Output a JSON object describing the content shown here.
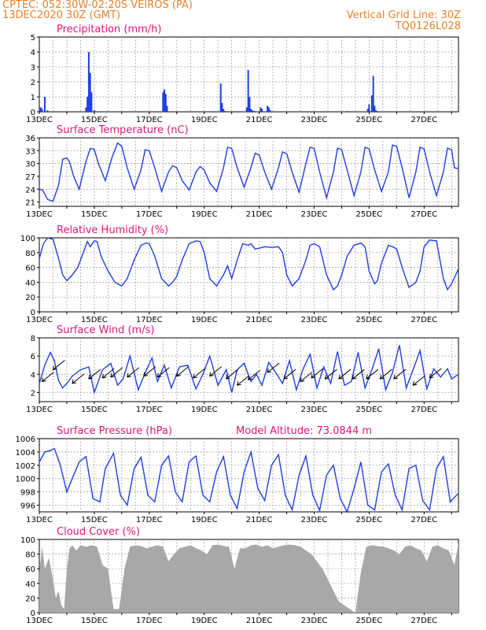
{
  "header": {
    "left_line1": "CPTEC:   052:30W-02:20S   VEIROS (PA)",
    "left_line2": "13DEC2020 30Z (GMT)",
    "right_line1": "Vertical Grid Line: 30Z",
    "right_line2": "TQ0126L028"
  },
  "colors": {
    "header": "#e8822a",
    "title": "#e0177a",
    "line": "#1f3fe6",
    "cloud": "#a8a8a8",
    "grid": "#9a9a9a"
  },
  "x_tick_labels": [
    "13DEC",
    "15DEC",
    "17DEC",
    "19DEC",
    "21DEC",
    "23DEC",
    "25DEC",
    "27DEC"
  ],
  "x_range_days": [
    0,
    15.25
  ],
  "panels": [
    {
      "key": "precip",
      "title": "Precipitation (mm/h)",
      "type": "bar",
      "ylim": [
        0,
        5
      ],
      "yticks": [
        "0",
        "1",
        "2",
        "3",
        "4",
        "5"
      ]
    },
    {
      "key": "temp",
      "title": "Surface Temperature (nC)",
      "type": "line",
      "ylim": [
        20,
        36
      ],
      "yticks": [
        "21",
        "24",
        "27",
        "30",
        "33",
        "36"
      ]
    },
    {
      "key": "rh",
      "title": "Relative Humidity (%)",
      "type": "line",
      "ylim": [
        0,
        100
      ],
      "yticks": [
        "0",
        "20",
        "40",
        "60",
        "80",
        "100"
      ]
    },
    {
      "key": "wind",
      "title": "Surface Wind (m/s)",
      "type": "line",
      "ylim": [
        1,
        8
      ],
      "yticks": [
        "2",
        "4",
        "6",
        "8"
      ]
    },
    {
      "key": "pres",
      "title": "Surface Pressure (hPa)",
      "extra": "Model Altitude: 73.0844 m",
      "type": "line",
      "ylim": [
        995,
        1006
      ],
      "yticks": [
        "996",
        "998",
        "1000",
        "1002",
        "1004",
        "1006"
      ]
    },
    {
      "key": "cloud",
      "title": "Cloud Cover (%)",
      "type": "area",
      "ylim": [
        0,
        100
      ],
      "yticks": [
        "0",
        "20",
        "40",
        "60",
        "80",
        "100"
      ]
    }
  ],
  "chart_data": [
    {
      "type": "bar",
      "title": "Precipitation (mm/h)",
      "x_unit": "days from 13DEC 00Z",
      "x": [
        0.05,
        0.1,
        0.2,
        0.3,
        1.7,
        1.75,
        1.8,
        1.85,
        1.9,
        2.0,
        4.5,
        4.55,
        4.6,
        4.65,
        6.6,
        6.65,
        6.7,
        6.75,
        7.55,
        7.6,
        7.65,
        7.7,
        7.75,
        7.8,
        7.85,
        8.05,
        8.1,
        8.3,
        8.35,
        8.4,
        11.2,
        11.95,
        12.0,
        12.1,
        12.15,
        12.2,
        12.25,
        12.3
      ],
      "values": [
        0.3,
        0.2,
        1.0,
        0.1,
        0.3,
        1.0,
        4.0,
        2.6,
        1.3,
        0.1,
        1.3,
        1.5,
        1.2,
        0.4,
        1.9,
        0.6,
        0.2,
        0.05,
        0.3,
        2.8,
        1.0,
        0.2,
        0.1,
        0.05,
        0.05,
        0.3,
        0.2,
        0.4,
        0.3,
        0.1,
        0.05,
        0.2,
        0.5,
        1.1,
        2.4,
        0.4,
        0.1,
        0.05
      ],
      "ylim": [
        0,
        5
      ]
    },
    {
      "type": "line",
      "title": "Surface Temperature (nC)",
      "x_unit": "days from 13DEC 00Z",
      "x": [
        0,
        0.12,
        0.3,
        0.5,
        0.7,
        0.85,
        1.0,
        1.1,
        1.25,
        1.45,
        1.7,
        1.85,
        2.0,
        2.15,
        2.4,
        2.65,
        2.85,
        3.0,
        3.2,
        3.45,
        3.7,
        3.85,
        4.0,
        4.2,
        4.45,
        4.7,
        4.85,
        5.0,
        5.2,
        5.45,
        5.7,
        5.85,
        6.0,
        6.2,
        6.45,
        6.7,
        6.85,
        7.0,
        7.2,
        7.45,
        7.7,
        7.85,
        8.0,
        8.2,
        8.45,
        8.7,
        8.85,
        9.0,
        9.2,
        9.45,
        9.7,
        9.85,
        10.0,
        10.2,
        10.45,
        10.7,
        10.85,
        11.0,
        11.2,
        11.45,
        11.7,
        11.85,
        12.0,
        12.2,
        12.45,
        12.7,
        12.85,
        13.0,
        13.2,
        13.45,
        13.7,
        13.85,
        14.0,
        14.2,
        14.45,
        14.7,
        14.85,
        15.0,
        15.1,
        15.25
      ],
      "values": [
        24,
        23.8,
        21.6,
        21.2,
        25,
        31,
        31.3,
        30.4,
        27,
        24,
        30.5,
        33.5,
        33.3,
        30,
        26,
        31.5,
        34.8,
        34,
        29,
        24,
        28.5,
        33.2,
        33,
        29,
        23.5,
        28,
        29.5,
        29,
        26,
        23.8,
        28,
        29.3,
        28.5,
        25.5,
        23.5,
        29,
        33.8,
        33.5,
        29,
        24.5,
        29,
        32.4,
        32,
        28,
        24,
        29,
        32.7,
        32.3,
        28,
        23.3,
        30,
        33.8,
        33.5,
        28,
        22,
        28,
        33.6,
        33.2,
        28.5,
        22.5,
        28,
        33.8,
        33.4,
        28.5,
        23.5,
        28,
        34.3,
        34,
        29,
        22,
        28,
        33.8,
        33.4,
        28,
        22.5,
        28,
        33.6,
        33.2,
        29,
        28.8
      ],
      "ylim": [
        20,
        36
      ]
    },
    {
      "type": "line",
      "title": "Relative Humidity (%)",
      "x_unit": "days from 13DEC 00Z",
      "x": [
        0,
        0.15,
        0.3,
        0.5,
        0.7,
        0.85,
        1.0,
        1.2,
        1.4,
        1.6,
        1.75,
        1.85,
        2.0,
        2.1,
        2.25,
        2.5,
        2.75,
        3.0,
        3.2,
        3.45,
        3.7,
        3.9,
        4.0,
        4.2,
        4.45,
        4.7,
        4.85,
        5.0,
        5.2,
        5.45,
        5.7,
        5.85,
        6.0,
        6.2,
        6.45,
        6.7,
        6.85,
        7.0,
        7.2,
        7.4,
        7.6,
        7.7,
        7.85,
        8.0,
        8.2,
        8.45,
        8.7,
        8.85,
        9.0,
        9.2,
        9.45,
        9.7,
        9.85,
        10.0,
        10.2,
        10.45,
        10.7,
        10.85,
        11.0,
        11.2,
        11.45,
        11.7,
        11.85,
        12.0,
        12.2,
        12.3,
        12.45,
        12.7,
        12.85,
        13.0,
        13.2,
        13.45,
        13.7,
        13.85,
        14.0,
        14.2,
        14.45,
        14.7,
        14.85,
        15.0,
        15.25
      ],
      "values": [
        72,
        92,
        100,
        98,
        72,
        50,
        42,
        50,
        60,
        80,
        95,
        88,
        96,
        95,
        75,
        55,
        40,
        35,
        45,
        70,
        90,
        93,
        92,
        75,
        45,
        35,
        40,
        48,
        70,
        92,
        96,
        95,
        80,
        45,
        35,
        50,
        62,
        45,
        70,
        92,
        90,
        92,
        85,
        86,
        88,
        87,
        88,
        80,
        50,
        35,
        45,
        70,
        90,
        92,
        88,
        50,
        30,
        35,
        50,
        75,
        90,
        93,
        88,
        55,
        38,
        42,
        66,
        90,
        88,
        85,
        60,
        33,
        40,
        55,
        88,
        97,
        96,
        45,
        30,
        38,
        58
      ],
      "ylim": [
        0,
        100
      ]
    },
    {
      "type": "line",
      "title": "Surface Wind (m/s)",
      "x_unit": "days from 13DEC 00Z",
      "x": [
        0,
        0.2,
        0.4,
        0.55,
        0.7,
        0.85,
        1.0,
        1.2,
        1.5,
        1.8,
        2.0,
        2.3,
        2.6,
        2.85,
        3.05,
        3.3,
        3.6,
        3.9,
        4.1,
        4.3,
        4.55,
        4.8,
        5.1,
        5.4,
        5.7,
        5.95,
        6.2,
        6.5,
        6.8,
        7.0,
        7.2,
        7.45,
        7.7,
        7.9,
        8.1,
        8.35,
        8.6,
        8.85,
        9.1,
        9.35,
        9.6,
        9.85,
        10.1,
        10.35,
        10.6,
        10.85,
        11.1,
        11.35,
        11.6,
        11.85,
        12.1,
        12.35,
        12.6,
        12.85,
        13.1,
        13.35,
        13.6,
        13.85,
        14.1,
        14.35,
        14.6,
        14.85,
        15.0,
        15.25
      ],
      "values": [
        3.0,
        5.0,
        6.4,
        5.5,
        3.3,
        2.5,
        3.0,
        3.8,
        4.5,
        4.8,
        2.0,
        4.5,
        5.2,
        2.8,
        3.5,
        6.0,
        2.3,
        4.5,
        5.8,
        3.2,
        5.0,
        2.5,
        4.8,
        5.0,
        2.4,
        4.0,
        6.0,
        2.8,
        4.5,
        2.0,
        4.5,
        5.2,
        3.2,
        4.0,
        2.8,
        5.3,
        4.2,
        3.0,
        5.5,
        2.3,
        4.6,
        6.2,
        2.5,
        4.8,
        3.0,
        6.5,
        2.8,
        3.2,
        6.4,
        2.5,
        4.5,
        6.8,
        2.3,
        4.2,
        7.2,
        2.5,
        4.5,
        6.6,
        2.4,
        4.6,
        3.7,
        4.6,
        3.5,
        4.0
      ],
      "arrows_x": [
        0.1,
        0.5,
        1.2,
        1.8,
        2.3,
        2.6,
        3.2,
        3.8,
        4.3,
        5.0,
        5.6,
        6.2,
        6.8,
        7.2,
        7.6,
        8.3,
        8.9,
        9.5,
        9.9,
        10.4,
        10.9,
        11.4,
        11.9,
        12.4,
        12.9,
        13.6,
        14.2
      ],
      "arrows_speed": [
        3.2,
        4.5,
        3.0,
        3.5,
        3.6,
        3.7,
        3.7,
        3.8,
        3.7,
        3.8,
        3.6,
        3.8,
        3.5,
        2.8,
        3.4,
        4.2,
        3.5,
        3.2,
        3.6,
        3.5,
        3.5,
        3.5,
        3.5,
        3.5,
        3.5,
        2.8,
        3.6
      ],
      "ylim": [
        1,
        8
      ]
    },
    {
      "type": "line",
      "title": "Surface Pressure (hPa)",
      "x_unit": "days from 13DEC 00Z",
      "x": [
        0,
        0.2,
        0.4,
        0.55,
        0.75,
        1.0,
        1.2,
        1.45,
        1.7,
        1.95,
        2.2,
        2.4,
        2.7,
        2.95,
        3.2,
        3.45,
        3.7,
        3.95,
        4.2,
        4.45,
        4.7,
        4.95,
        5.2,
        5.45,
        5.7,
        5.95,
        6.2,
        6.45,
        6.7,
        6.95,
        7.2,
        7.45,
        7.7,
        7.95,
        8.2,
        8.45,
        8.7,
        8.95,
        9.2,
        9.45,
        9.7,
        9.95,
        10.2,
        10.45,
        10.7,
        10.95,
        11.2,
        11.45,
        11.7,
        11.95,
        12.2,
        12.45,
        12.7,
        12.95,
        13.2,
        13.45,
        13.7,
        13.95,
        14.2,
        14.45,
        14.7,
        14.95,
        15.25
      ],
      "values": [
        1002.5,
        1004,
        1004.2,
        1004.5,
        1002.2,
        998,
        1000,
        1002.5,
        1003.3,
        997,
        996.5,
        1001.5,
        1003.8,
        997.5,
        996,
        1001.5,
        1003.2,
        997.5,
        996.5,
        1002,
        1003.4,
        998,
        996.5,
        1002.5,
        1003.4,
        997.5,
        996.5,
        1001,
        1003.3,
        997.5,
        995.5,
        1001,
        1004,
        998.5,
        996.7,
        1002,
        1003.6,
        997.5,
        995.3,
        1000.5,
        1003.4,
        997.5,
        995.2,
        1000.5,
        1002,
        997,
        995,
        998.5,
        1002.5,
        996,
        995.3,
        1001,
        1002.2,
        997.5,
        995.3,
        1001.5,
        1002,
        996.7,
        995.3,
        1001.5,
        1003.3,
        996.5,
        997.8
      ],
      "ylim": [
        995,
        1006
      ]
    },
    {
      "type": "area",
      "title": "Cloud Cover (%)",
      "x_unit": "days from 13DEC 00Z",
      "x": [
        0,
        0.1,
        0.2,
        0.35,
        0.5,
        0.6,
        0.7,
        0.8,
        0.9,
        1.0,
        1.1,
        1.2,
        1.35,
        1.5,
        1.7,
        1.9,
        2.1,
        2.3,
        2.5,
        2.7,
        2.9,
        3.1,
        3.3,
        3.5,
        3.7,
        3.9,
        4.1,
        4.3,
        4.5,
        4.7,
        4.9,
        5.1,
        5.3,
        5.5,
        5.7,
        5.9,
        6.1,
        6.3,
        6.5,
        6.7,
        6.9,
        7.1,
        7.3,
        7.5,
        7.7,
        7.9,
        8.1,
        8.3,
        8.5,
        8.7,
        8.9,
        9.1,
        9.3,
        9.5,
        9.7,
        9.9,
        10.1,
        10.3,
        10.5,
        10.7,
        10.9,
        11.1,
        11.3,
        11.5,
        11.7,
        11.9,
        12.1,
        12.3,
        12.5,
        12.7,
        12.9,
        13.1,
        13.3,
        13.5,
        13.7,
        13.9,
        14.1,
        14.3,
        14.5,
        14.7,
        14.9,
        15.1,
        15.25
      ],
      "values": [
        55,
        90,
        60,
        75,
        45,
        20,
        30,
        10,
        5,
        60,
        88,
        92,
        85,
        92,
        90,
        92,
        90,
        65,
        60,
        5,
        5,
        60,
        90,
        92,
        91,
        88,
        90,
        92,
        90,
        70,
        80,
        88,
        90,
        92,
        88,
        85,
        80,
        92,
        93,
        91,
        90,
        60,
        88,
        88,
        92,
        93,
        90,
        92,
        88,
        90,
        92,
        93,
        92,
        90,
        85,
        80,
        70,
        60,
        45,
        30,
        15,
        10,
        5,
        0,
        55,
        90,
        92,
        91,
        90,
        88,
        85,
        80,
        90,
        92,
        88,
        85,
        70,
        90,
        92,
        88,
        85,
        65,
        95
      ],
      "ylim": [
        0,
        100
      ]
    }
  ]
}
